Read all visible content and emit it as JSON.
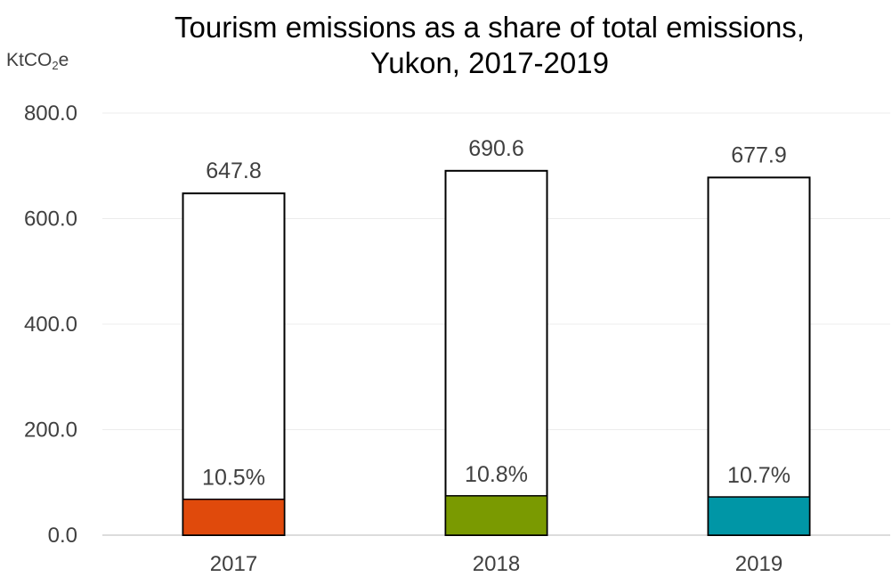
{
  "chart_data": {
    "type": "bar",
    "title_line1": "Tourism emissions as a share of total emissions,",
    "title_line2": "Yukon, 2017-2019",
    "unit_label": {
      "prefix": "KtCO",
      "subscript": "2",
      "suffix": "e"
    },
    "categories": [
      "2017",
      "2018",
      "2019"
    ],
    "series": [
      {
        "values": [
          647.8,
          690.6,
          677.9
        ],
        "labels": [
          "647.8",
          "690.6",
          "677.9"
        ]
      },
      {
        "values": [
          68.0,
          74.6,
          72.5
        ],
        "labels": [
          "10.5%",
          "10.8%",
          "10.7%"
        ],
        "colors": [
          "#E04A0C",
          "#7A9A01",
          "#0096A6"
        ]
      }
    ],
    "yticks": [
      "0.0",
      "200.0",
      "400.0",
      "600.0",
      "800.0"
    ],
    "ylim": [
      0,
      800
    ],
    "grid": true
  }
}
